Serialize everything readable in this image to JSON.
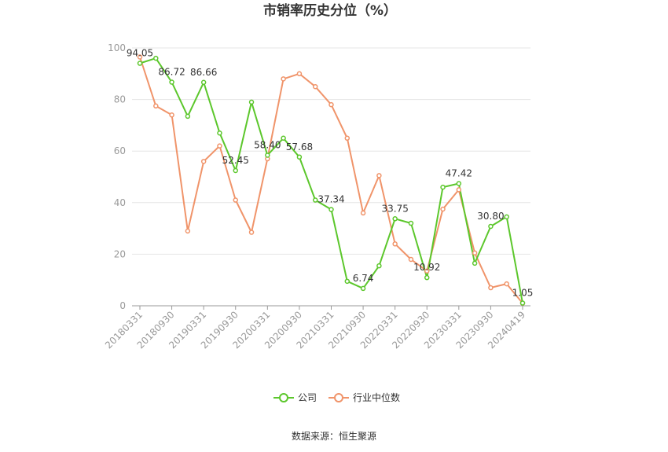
{
  "chart_data": {
    "type": "line",
    "title": "市销率历史分位（%）",
    "source": "数据来源：恒生聚源",
    "ylim": [
      0,
      100
    ],
    "yticks": [
      0,
      20,
      40,
      60,
      80,
      100
    ],
    "grid": true,
    "legend_position": "bottom",
    "x": [
      "20180331",
      "20180630",
      "20180930",
      "20181231",
      "20190331",
      "20190630",
      "20190930",
      "20191231",
      "20200331",
      "20200630",
      "20200930",
      "20201231",
      "20210331",
      "20210630",
      "20210930",
      "20211231",
      "20220331",
      "20220630",
      "20220930",
      "20221231",
      "20230331",
      "20230630",
      "20230930",
      "20231231",
      "20240419"
    ],
    "xtick_labels": [
      "20180331",
      "20180930",
      "20190331",
      "20190930",
      "20200331",
      "20200930",
      "20210331",
      "20210930",
      "20220331",
      "20220930",
      "20230331",
      "20230930",
      "20240419"
    ],
    "series": [
      {
        "name": "公司",
        "color": "#5cc72c",
        "values": [
          94.05,
          96.0,
          86.72,
          73.5,
          86.66,
          67.0,
          52.45,
          79.0,
          58.4,
          65.0,
          57.68,
          41.0,
          37.34,
          9.5,
          6.74,
          15.5,
          33.75,
          32.0,
          10.92,
          46.0,
          47.42,
          16.5,
          30.8,
          34.5,
          1.05
        ]
      },
      {
        "name": "行业中位数",
        "color": "#f0946a",
        "values": [
          96.5,
          77.5,
          74.0,
          29.0,
          56.0,
          62.0,
          41.0,
          28.5,
          57.0,
          88.0,
          90.0,
          85.0,
          78.0,
          65.0,
          36.0,
          50.5,
          24.0,
          18.0,
          13.5,
          37.5,
          45.0,
          20.5,
          7.0,
          8.5,
          1.0
        ]
      }
    ],
    "data_labels": [
      {
        "index": 0,
        "text": "94.05"
      },
      {
        "index": 2,
        "text": "86.72"
      },
      {
        "index": 4,
        "text": "86.66"
      },
      {
        "index": 6,
        "text": "52.45"
      },
      {
        "index": 8,
        "text": "58.40"
      },
      {
        "index": 10,
        "text": "57.68"
      },
      {
        "index": 12,
        "text": "37.34"
      },
      {
        "index": 14,
        "text": "6.74"
      },
      {
        "index": 16,
        "text": "33.75"
      },
      {
        "index": 18,
        "text": "10.92"
      },
      {
        "index": 20,
        "text": "47.42"
      },
      {
        "index": 22,
        "text": "30.80"
      },
      {
        "index": 24,
        "text": "1.05"
      }
    ]
  }
}
